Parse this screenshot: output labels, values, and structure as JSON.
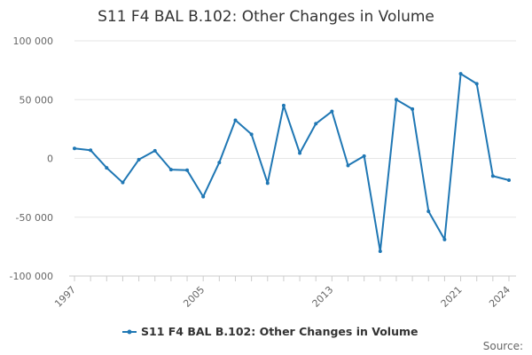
{
  "chart_data": {
    "type": "line",
    "title": "S11 F4 BAL B.102: Other Changes in Volume",
    "x": [
      1997,
      1998,
      1999,
      2000,
      2001,
      2002,
      2003,
      2004,
      2005,
      2006,
      2007,
      2008,
      2009,
      2010,
      2011,
      2012,
      2013,
      2014,
      2015,
      2016,
      2017,
      2018,
      2019,
      2020,
      2021,
      2022,
      2023,
      2024
    ],
    "series": [
      {
        "name": "S11 F4 BAL B.102: Other Changes in Volume",
        "color": "#1f77b4",
        "values": [
          8500,
          7000,
          -8000,
          -20500,
          -1000,
          6500,
          -9500,
          -10000,
          -32500,
          -3500,
          32500,
          20500,
          -21000,
          45000,
          4500,
          29500,
          40000,
          -6000,
          2000,
          -79000,
          50000,
          42000,
          -45000,
          -69000,
          72000,
          63500,
          -15000,
          -18500
        ]
      }
    ],
    "xticks": [
      "1997",
      "2005",
      "2013",
      "2021",
      "2024"
    ],
    "yticks": [
      "100 000",
      "50 000",
      "0",
      "-50 000",
      "-100 000"
    ],
    "ylim": [
      -100000,
      100000
    ],
    "xlim": [
      1997,
      2024
    ],
    "grid": "horizontal",
    "legend": "bottom-center",
    "source_label": "Source:"
  }
}
